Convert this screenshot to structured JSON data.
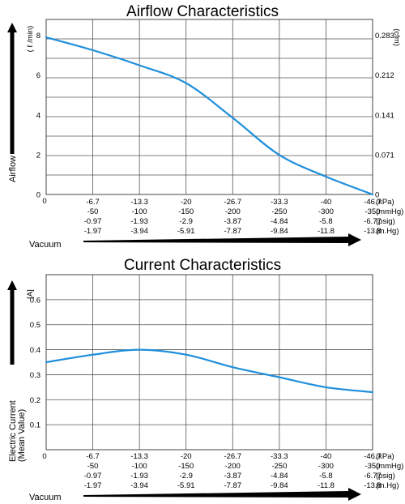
{
  "chart_data": [
    {
      "type": "line",
      "title": "Airflow Characteristics",
      "ylabel": "Airflow",
      "y_unit_left": "( ℓ /min)",
      "y_unit_right": "(cfm)",
      "xlabel": "Vacuum",
      "ylim": [
        0,
        8.8
      ],
      "xlim": [
        0,
        -46.7
      ],
      "yticks_left": [
        "0",
        "2",
        "4",
        "6",
        "8"
      ],
      "yticks_right": [
        "0",
        "0.071",
        "0.141",
        "0.212",
        "0.283"
      ],
      "x_tick_rows": [
        {
          "unit": "(kPa)",
          "labels": [
            "-6.7",
            "-13.3",
            "-20",
            "-26.7",
            "-33.3",
            "-40",
            "-46.7"
          ]
        },
        {
          "unit": "(mmHg)",
          "labels": [
            "-50",
            "-100",
            "-150",
            "-200",
            "-250",
            "-300",
            "-350"
          ]
        },
        {
          "unit": "(psig)",
          "labels": [
            "-0.97",
            "-1.93",
            "-2.9",
            "-3.87",
            "-4.84",
            "-5.8",
            "-6.77"
          ]
        },
        {
          "unit": "(in.Hg)",
          "labels": [
            "-1.97",
            "-3.94",
            "-5.91",
            "-7.87",
            "-9.84",
            "-11.8",
            "-13.8"
          ]
        }
      ],
      "grid": true,
      "series": [
        {
          "color": "#1f8fdc",
          "x": [
            0,
            -6.7,
            -13.3,
            -20,
            -26.7,
            -33.3,
            -40,
            -46.7
          ],
          "y": [
            7.9,
            7.25,
            6.5,
            5.6,
            3.85,
            2.0,
            0.9,
            0.0
          ]
        }
      ]
    },
    {
      "type": "line",
      "title": "Current Characteristics",
      "ylabel": "Electric Current",
      "ylabel2": "(Mean Value)",
      "y_unit_left": "[A]",
      "xlabel": "Vacuum",
      "ylim": [
        0,
        0.7
      ],
      "xlim": [
        0,
        -46.7
      ],
      "yticks_left": [
        "0.1",
        "0.2",
        "0.3",
        "0.4",
        "0.5",
        "0.6"
      ],
      "x_tick_rows": [
        {
          "unit": "(kPa)",
          "labels": [
            "-6.7",
            "-13.3",
            "-20",
            "-26.7",
            "-33.3",
            "-40",
            "-46.7"
          ]
        },
        {
          "unit": "(mmHg)",
          "labels": [
            "-50",
            "-100",
            "-150",
            "-200",
            "-250",
            "-300",
            "-350"
          ]
        },
        {
          "unit": "(psig)",
          "labels": [
            "-0.97",
            "-1.93",
            "-2.9",
            "-3.87",
            "-4.84",
            "-5.8",
            "-6.77"
          ]
        },
        {
          "unit": "(in.Hg)",
          "labels": [
            "-1.97",
            "-3.94",
            "-5.91",
            "-7.87",
            "-9.84",
            "-11.8",
            "-13.8"
          ]
        }
      ],
      "grid": true,
      "series": [
        {
          "color": "#1f8fdc",
          "x": [
            0,
            -6.7,
            -13.3,
            -20,
            -26.7,
            -33.3,
            -40,
            -46.7
          ],
          "y": [
            0.35,
            0.38,
            0.4,
            0.38,
            0.33,
            0.29,
            0.25,
            0.23
          ]
        }
      ]
    }
  ]
}
